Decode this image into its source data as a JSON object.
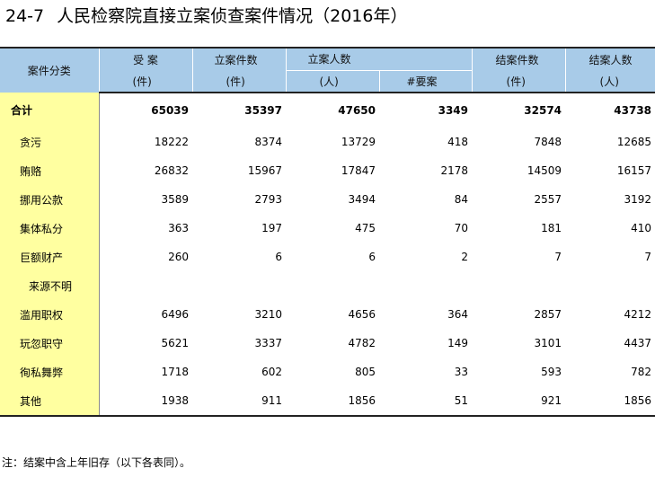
{
  "title": {
    "code": "24-7",
    "text": "人民检察院直接立案侦查案件情况（2016年）"
  },
  "header": {
    "category": "案件分类",
    "accepted": {
      "label": "受 案",
      "unit": "(件)"
    },
    "filed_cases": {
      "label": "立案件数",
      "unit": "(件)"
    },
    "filed_persons": {
      "label": "立案人数",
      "unit": "(人)",
      "sub_label": "#要案"
    },
    "closed_cases": {
      "label": "结案件数",
      "unit": "(件)"
    },
    "closed_persons": {
      "label": "结案人数",
      "unit": "(人)"
    }
  },
  "rows": [
    {
      "category": "合计",
      "accepted": "65039",
      "filed_cases": "35397",
      "filed_persons": "47650",
      "major": "3349",
      "closed_cases": "32574",
      "closed_persons": "43738"
    },
    {
      "category": "贪污",
      "accepted": "18222",
      "filed_cases": "8374",
      "filed_persons": "13729",
      "major": "418",
      "closed_cases": "7848",
      "closed_persons": "12685"
    },
    {
      "category": "贿赂",
      "accepted": "26832",
      "filed_cases": "15967",
      "filed_persons": "17847",
      "major": "2178",
      "closed_cases": "14509",
      "closed_persons": "16157"
    },
    {
      "category": "挪用公款",
      "accepted": "3589",
      "filed_cases": "2793",
      "filed_persons": "3494",
      "major": "84",
      "closed_cases": "2557",
      "closed_persons": "3192"
    },
    {
      "category": "集体私分",
      "accepted": "363",
      "filed_cases": "197",
      "filed_persons": "475",
      "major": "70",
      "closed_cases": "181",
      "closed_persons": "410"
    },
    {
      "category": "巨额财产",
      "accepted": "260",
      "filed_cases": "6",
      "filed_persons": "6",
      "major": "2",
      "closed_cases": "7",
      "closed_persons": "7"
    },
    {
      "category": "来源不明",
      "accepted": "",
      "filed_cases": "",
      "filed_persons": "",
      "major": "",
      "closed_cases": "",
      "closed_persons": ""
    },
    {
      "category": "滥用职权",
      "accepted": "6496",
      "filed_cases": "3210",
      "filed_persons": "4656",
      "major": "364",
      "closed_cases": "2857",
      "closed_persons": "4212"
    },
    {
      "category": "玩忽职守",
      "accepted": "5621",
      "filed_cases": "3337",
      "filed_persons": "4782",
      "major": "149",
      "closed_cases": "3101",
      "closed_persons": "4437"
    },
    {
      "category": "徇私舞弊",
      "accepted": "1718",
      "filed_cases": "602",
      "filed_persons": "805",
      "major": "33",
      "closed_cases": "593",
      "closed_persons": "782"
    },
    {
      "category": "其他",
      "accepted": "1938",
      "filed_cases": "911",
      "filed_persons": "1856",
      "major": "51",
      "closed_cases": "921",
      "closed_persons": "1856"
    }
  ],
  "note": "注：结案中含上年旧存（以下各表同）。"
}
